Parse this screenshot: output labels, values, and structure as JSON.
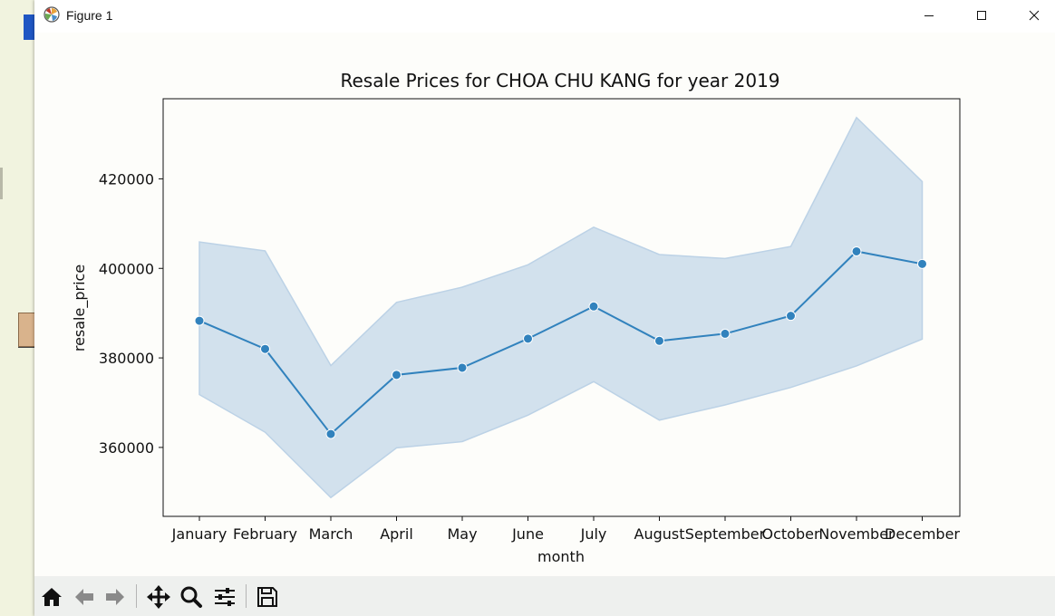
{
  "window": {
    "title": "Figure 1"
  },
  "toolbar": {
    "icons": [
      "home-icon",
      "back-arrow-icon",
      "forward-arrow-icon",
      "pan-icon",
      "zoom-icon",
      "configure-subplots-icon",
      "save-icon"
    ]
  },
  "chart_data": {
    "type": "line",
    "title": "Resale Prices for CHOA CHU KANG for year 2019",
    "xlabel": "month",
    "ylabel": "resale_price",
    "categories": [
      "January",
      "February",
      "March",
      "April",
      "May",
      "June",
      "July",
      "August",
      "September",
      "October",
      "November",
      "December"
    ],
    "series": [
      {
        "values": [
          388300,
          382000,
          363000,
          376200,
          377800,
          384300,
          391500,
          383800,
          385400,
          389400,
          403800,
          401000
        ],
        "ci_upper": [
          405900,
          403900,
          378300,
          392400,
          395800,
          400800,
          409200,
          403100,
          402200,
          404900,
          433700,
          419400
        ],
        "ci_lower": [
          371800,
          363400,
          348800,
          359900,
          361300,
          367200,
          374700,
          366100,
          369500,
          373400,
          378200,
          384200
        ],
        "color": "#3182bd",
        "band_color": "#bcd2e6"
      }
    ],
    "yticks": [
      360000,
      380000,
      400000,
      420000
    ],
    "ylim": [
      344600,
      437900
    ],
    "grid": false,
    "legend": "none"
  }
}
